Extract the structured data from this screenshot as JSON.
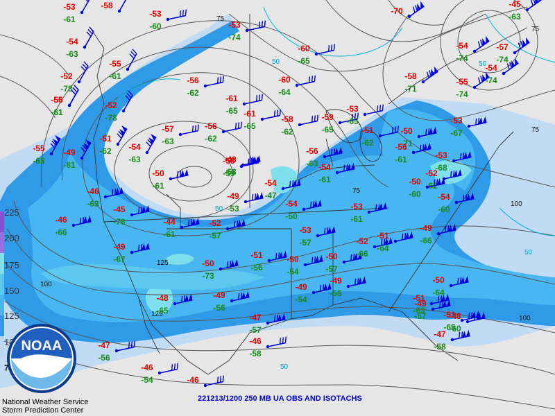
{
  "title": "221213/1200 250 MB UA OBS AND ISOTACHS",
  "agency": {
    "line1": "National Weather Service",
    "line2": "Storm Prediction Center",
    "logo_text": "NOAA"
  },
  "legend": {
    "labels": [
      "225",
      "200",
      "175",
      "150",
      "125",
      "100",
      "75"
    ]
  },
  "colors": {
    "background": "#e6e6e6",
    "isotach_50": "#b8d8f4",
    "isotach_75": "#2e9ae8",
    "isotach_100": "#48b6f0",
    "isotach_125": "#7fe0ec",
    "barbs": "#0000dd",
    "temperature": "#e60000",
    "dewpoint": "#1a8a1a"
  },
  "isotach_labels": [
    "100",
    "125",
    "125",
    "100",
    "100",
    "75",
    "75",
    "75",
    "75",
    "75"
  ],
  "cyan_labels": [
    "50",
    "50",
    "50",
    "50",
    "50"
  ],
  "stations": [
    {
      "t": "-53",
      "d": "-61"
    },
    {
      "t": "-58",
      "d": ""
    },
    {
      "t": "-53",
      "d": "-60"
    },
    {
      "t": "-53",
      "d": "-74"
    },
    {
      "t": "-54",
      "d": "-63"
    },
    {
      "t": "-55",
      "d": "-61"
    },
    {
      "t": "-52",
      "d": "-78"
    },
    {
      "t": "-56",
      "d": "-62"
    },
    {
      "t": "-55",
      "d": "-61"
    },
    {
      "t": "-56",
      "d": "-61"
    },
    {
      "t": "-52",
      "d": "-78"
    },
    {
      "t": "-51",
      "d": "-62"
    },
    {
      "t": "-49",
      "d": "-81"
    },
    {
      "t": "-55",
      "d": "-63"
    },
    {
      "t": "-54",
      "d": "-63"
    },
    {
      "t": "-57",
      "d": "-63"
    },
    {
      "t": "-50",
      "d": "-61"
    },
    {
      "t": "-56",
      "d": "-62"
    },
    {
      "t": "-61",
      "d": "-65"
    },
    {
      "t": "-61",
      "d": "-65"
    },
    {
      "t": "-60",
      "d": "-65"
    },
    {
      "t": "-60",
      "d": "-64"
    },
    {
      "t": "-58",
      "d": "-62"
    },
    {
      "t": "-58",
      "d": "-59"
    },
    {
      "t": "-48",
      "d": "-58"
    },
    {
      "t": "-54",
      "d": "-47"
    },
    {
      "t": "-59",
      "d": "-65"
    },
    {
      "t": "-56",
      "d": "-63"
    },
    {
      "t": "-54",
      "d": "-61"
    },
    {
      "t": "-49",
      "d": "-53"
    },
    {
      "t": "-54",
      "d": "-50"
    },
    {
      "t": "-46",
      "d": "-63"
    },
    {
      "t": "-45",
      "d": "-78"
    },
    {
      "t": "-46",
      "d": "-66"
    },
    {
      "t": "-44",
      "d": "-61"
    },
    {
      "t": "-52",
      "d": "-57"
    },
    {
      "t": "-53",
      "d": "-57"
    },
    {
      "t": "-51",
      "d": "-56"
    },
    {
      "t": "-50",
      "d": "-54"
    },
    {
      "t": "-50",
      "d": "-57"
    },
    {
      "t": "-50",
      "d": "-73"
    },
    {
      "t": "-49",
      "d": "-67"
    },
    {
      "t": "-48",
      "d": "-65"
    },
    {
      "t": "-49",
      "d": "-56"
    },
    {
      "t": "-49",
      "d": "-54"
    },
    {
      "t": "-49",
      "d": "-56"
    },
    {
      "t": "-47",
      "d": "-57"
    },
    {
      "t": "-46",
      "d": "-58"
    },
    {
      "t": "-47",
      "d": "-56"
    },
    {
      "t": "-46",
      "d": "-54"
    },
    {
      "t": "-46",
      "d": ""
    },
    {
      "t": "-70",
      "d": ""
    },
    {
      "t": "-58",
      "d": "-71"
    },
    {
      "t": "-54",
      "d": "-74"
    },
    {
      "t": "-55",
      "d": "-74"
    },
    {
      "t": "-57",
      "d": "-74"
    },
    {
      "t": "-54",
      "d": "-74"
    },
    {
      "t": "-53",
      "d": "-67"
    },
    {
      "t": "-50",
      "d": "-71"
    },
    {
      "t": "-51",
      "d": "-62"
    },
    {
      "t": "-53",
      "d": "-65"
    },
    {
      "t": "-56",
      "d": "-61"
    },
    {
      "t": "-53",
      "d": "-61"
    },
    {
      "t": "-52",
      "d": "-66"
    },
    {
      "t": "-51",
      "d": "-64"
    },
    {
      "t": "-52",
      "d": "-62"
    },
    {
      "t": "-53",
      "d": "-68"
    },
    {
      "t": "-50",
      "d": "-60"
    },
    {
      "t": "-49",
      "d": "-66"
    },
    {
      "t": "-54",
      "d": "-60"
    },
    {
      "t": "-51",
      "d": "-63"
    },
    {
      "t": "-50",
      "d": "-64"
    },
    {
      "t": "-51",
      "d": "-65"
    },
    {
      "t": "-49",
      "d": "-57"
    },
    {
      "t": "-48",
      "d": "-60"
    },
    {
      "t": "-47",
      "d": "-58"
    },
    {
      "t": "-45",
      "d": "-63"
    },
    {
      "t": "-63",
      "d": "-67"
    }
  ]
}
